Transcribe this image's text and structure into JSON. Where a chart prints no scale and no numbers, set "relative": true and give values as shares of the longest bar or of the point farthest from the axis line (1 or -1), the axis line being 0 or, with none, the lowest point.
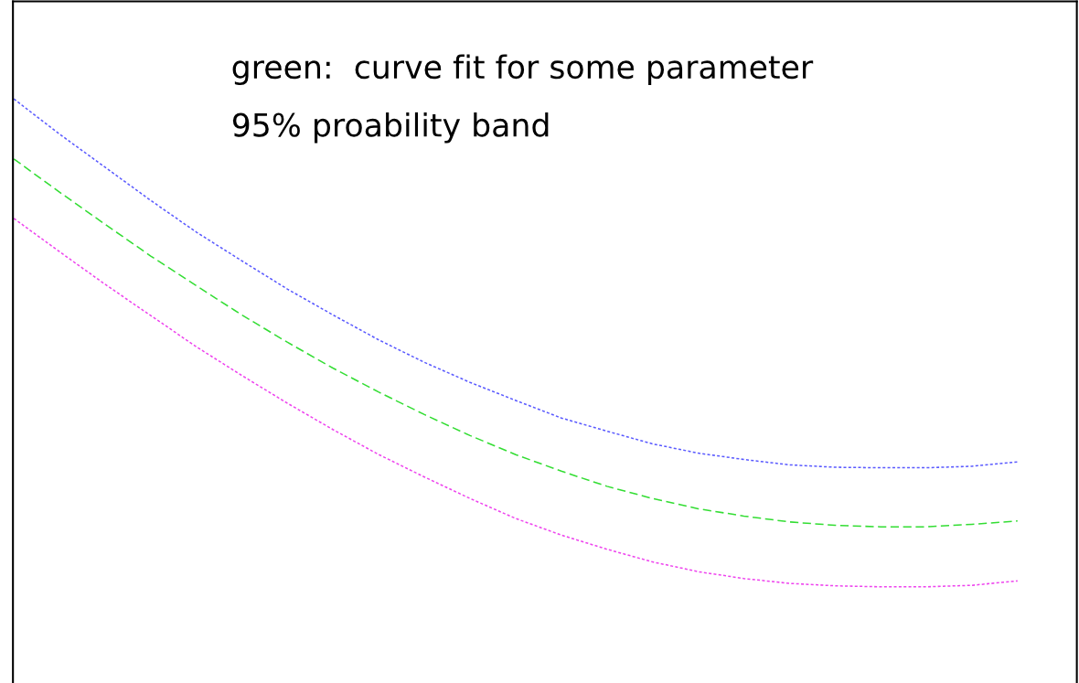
{
  "chart_data": {
    "type": "line",
    "relative": true,
    "grid": false,
    "legend": false,
    "categories": [
      null,
      null,
      null,
      null,
      null,
      null,
      null,
      null,
      null,
      null,
      null,
      null,
      null,
      null,
      null,
      null,
      null,
      null,
      null,
      null,
      null,
      null,
      null
    ],
    "series": [
      {
        "color": "#5a5aff",
        "line_style": "dotted",
        "values": [
          1.0,
          0.928,
          0.86,
          0.792,
          0.727,
          0.668,
          0.61,
          0.557,
          0.506,
          0.46,
          0.419,
          0.382,
          0.346,
          0.319,
          0.293,
          0.274,
          0.261,
          0.25,
          0.245,
          0.244,
          0.244,
          0.247,
          0.256
        ]
      },
      {
        "color": "#33dd33",
        "line_style": "dashed",
        "values": [
          0.877,
          0.809,
          0.743,
          0.678,
          0.617,
          0.557,
          0.501,
          0.448,
          0.399,
          0.353,
          0.31,
          0.271,
          0.237,
          0.206,
          0.181,
          0.16,
          0.145,
          0.133,
          0.126,
          0.123,
          0.123,
          0.128,
          0.135
        ]
      },
      {
        "color": "#ee44ee",
        "line_style": "dotted",
        "values": [
          0.755,
          0.687,
          0.62,
          0.556,
          0.492,
          0.433,
          0.376,
          0.322,
          0.271,
          0.225,
          0.181,
          0.14,
          0.106,
          0.077,
          0.051,
          0.031,
          0.017,
          0.007,
          0.002,
          0,
          0,
          0.003,
          0.012
        ]
      }
    ],
    "annotations": [
      "green:  curve fit for some parameter",
      "95% proability band"
    ]
  }
}
